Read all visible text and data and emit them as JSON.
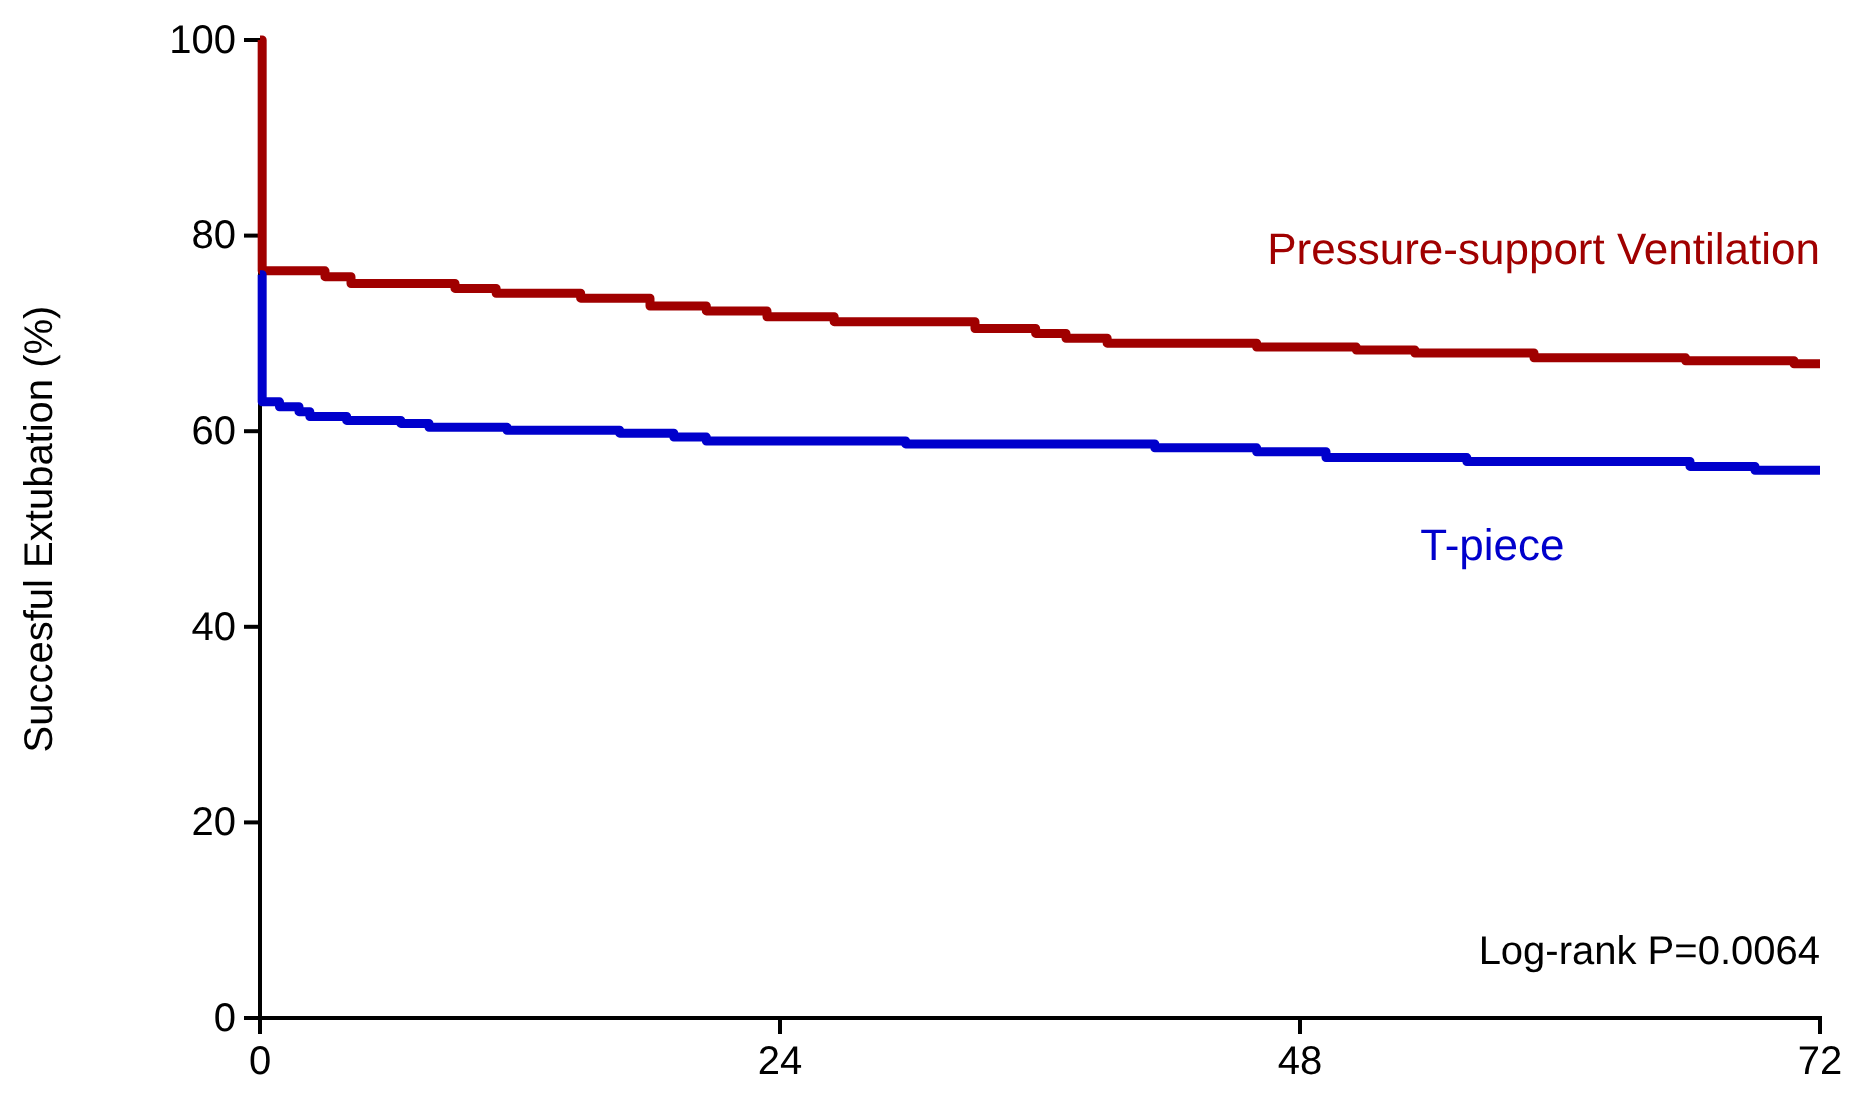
{
  "chart_data": {
    "type": "step",
    "ylabel": "Succesful Extubation (%)",
    "xlim": [
      0,
      72
    ],
    "xticks": [
      0,
      24,
      48,
      72
    ],
    "ylim": [
      0,
      100
    ],
    "yticks": [
      0,
      20,
      40,
      60,
      80,
      100
    ],
    "grid": false,
    "legend": false,
    "line_style": "solid",
    "marker": "none",
    "annotations": [
      "Log-rank P=0.0064"
    ],
    "series": [
      {
        "name": "Pressure-support Ventilation",
        "color": "#a00000",
        "x": [
          0,
          0.1,
          3.0,
          4.2,
          9.0,
          10.9,
          14.8,
          18.0,
          20.6,
          23.4,
          26.5,
          33.0,
          35.8,
          37.2,
          39.1,
          46.0,
          50.6,
          53.3,
          58.8,
          65.8,
          70.8,
          72
        ],
        "values": [
          100,
          76.4,
          75.8,
          75.1,
          74.6,
          74.1,
          73.6,
          72.8,
          72.3,
          71.7,
          71.2,
          70.5,
          70.0,
          69.5,
          69.0,
          68.6,
          68.3,
          68.0,
          67.5,
          67.2,
          66.9,
          66.9
        ]
      },
      {
        "name": "T-piece",
        "color": "#0000cc",
        "x": [
          0,
          0.1,
          0.9,
          1.8,
          2.3,
          4.0,
          6.5,
          7.8,
          11.4,
          16.6,
          19.1,
          20.6,
          29.8,
          41.3,
          46.0,
          49.2,
          55.7,
          66.0,
          69.0,
          72
        ],
        "values": [
          76,
          63.0,
          62.5,
          62.0,
          61.5,
          61.1,
          60.8,
          60.4,
          60.1,
          59.8,
          59.4,
          59.0,
          58.7,
          58.3,
          57.9,
          57.3,
          56.9,
          56.4,
          56.0,
          56.0
        ]
      }
    ]
  }
}
